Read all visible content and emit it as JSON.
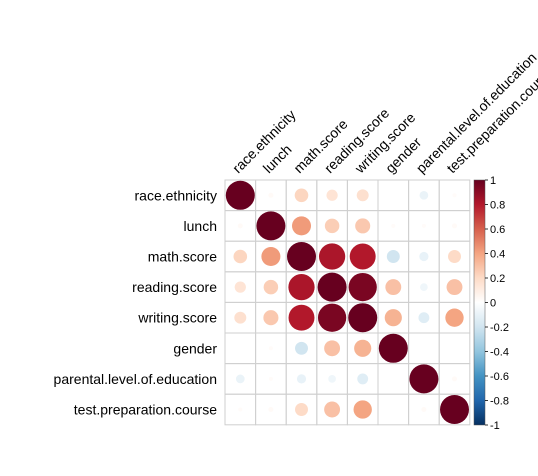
{
  "chart_data": {
    "type": "heatmap",
    "variables": [
      "race.ethnicity",
      "lunch",
      "math.score",
      "reading.score",
      "writing.score",
      "gender",
      "parental.level.of.education",
      "test.preparation.course"
    ],
    "matrix": [
      [
        1.0,
        0.03,
        0.22,
        0.15,
        0.17,
        0.0,
        -0.09,
        0.02
      ],
      [
        0.03,
        1.0,
        0.43,
        0.25,
        0.27,
        0.02,
        0.02,
        0.03
      ],
      [
        0.22,
        0.43,
        1.0,
        0.82,
        0.8,
        -0.2,
        -0.1,
        0.2
      ],
      [
        0.15,
        0.25,
        0.82,
        1.0,
        0.95,
        0.3,
        -0.07,
        0.3
      ],
      [
        0.17,
        0.27,
        0.8,
        0.95,
        1.0,
        0.35,
        -0.14,
        0.4
      ],
      [
        0.0,
        0.02,
        -0.2,
        0.3,
        0.35,
        1.0,
        0.0,
        0.0
      ],
      [
        -0.09,
        0.02,
        -0.1,
        -0.07,
        -0.14,
        0.0,
        1.0,
        0.03
      ],
      [
        0.02,
        0.03,
        0.2,
        0.3,
        0.4,
        0.0,
        0.03,
        1.0
      ]
    ],
    "colorbar": {
      "range": [
        -1,
        1
      ],
      "ticks": [
        "1",
        "0.8",
        "0.6",
        "0.4",
        "0.2",
        "0",
        "-0.2",
        "-0.4",
        "-0.6",
        "-0.8",
        "-1"
      ],
      "colors": [
        "#053061",
        "#2166AC",
        "#4393C3",
        "#92C5DE",
        "#D1E5F0",
        "#FFFFFF",
        "#FDDBC7",
        "#F4A582",
        "#D6604D",
        "#B2182B",
        "#67001F"
      ]
    }
  }
}
